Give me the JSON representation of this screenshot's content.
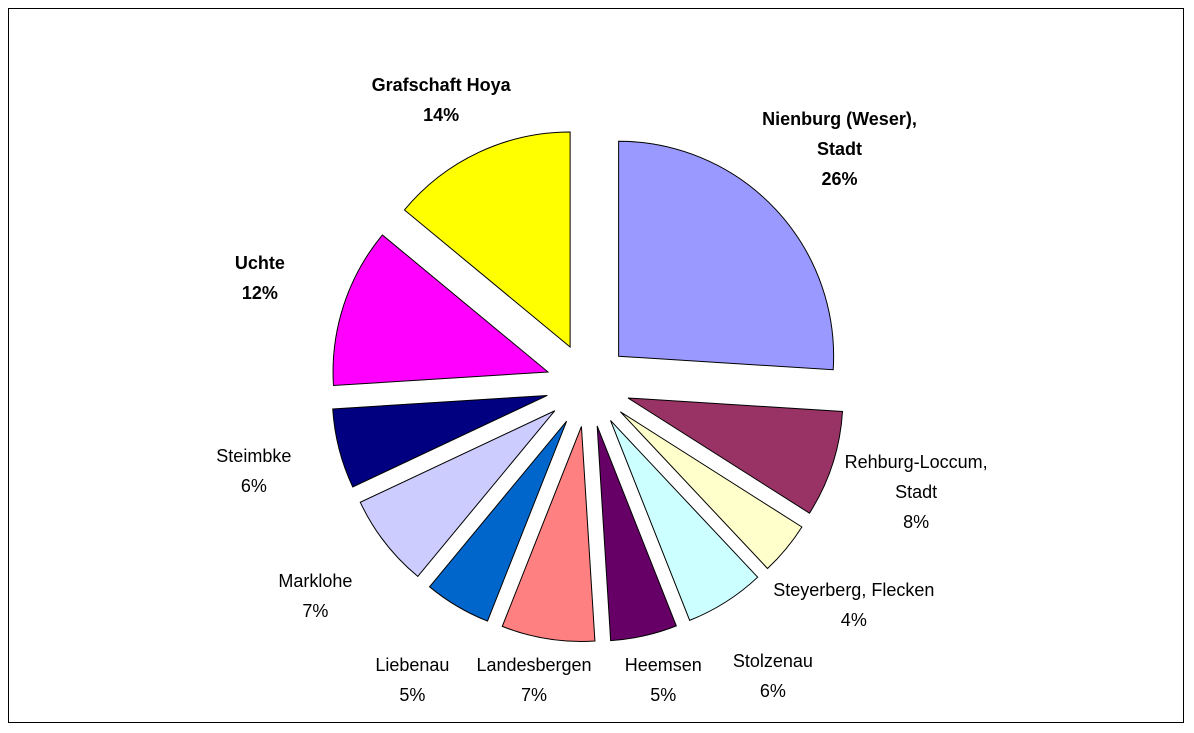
{
  "chart_data": {
    "type": "pie",
    "categories": [
      "Nienburg (Weser),\nStadt",
      "Rehburg-Loccum,\nStadt",
      "Steyerberg, Flecken",
      "Stolzenau",
      "Heemsen",
      "Landesbergen",
      "Liebenau",
      "Marklohe",
      "Steimbke",
      "Uchte",
      "Grafschaft Hoya"
    ],
    "values": [
      26,
      8,
      4,
      6,
      5,
      7,
      5,
      7,
      6,
      12,
      14
    ],
    "value_labels": [
      "26%",
      "8%",
      "4%",
      "6%",
      "5%",
      "7%",
      "5%",
      "7%",
      "6%",
      "12%",
      "14%"
    ],
    "colors": [
      "#9999ff",
      "#993366",
      "#ffffcc",
      "#ccffff",
      "#660066",
      "#ff8080",
      "#0066cc",
      "#ccccff",
      "#000080",
      "#ff00ff",
      "#ffff00"
    ]
  }
}
